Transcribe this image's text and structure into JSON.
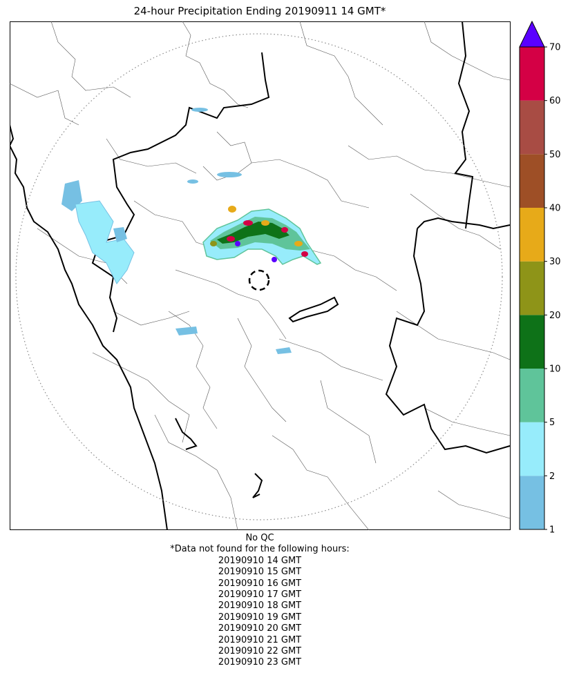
{
  "title": "24-hour Precipitation Ending 20190911 14 GMT*",
  "map": {
    "description_items": [
      "radar-range-ring",
      "radar-site-marker",
      "state-boundaries",
      "district-boundaries",
      "coastline",
      "precipitation-cells"
    ]
  },
  "colorbar": {
    "levels": [
      1,
      2,
      5,
      10,
      20,
      30,
      40,
      50,
      60,
      70
    ],
    "tick_labels": [
      "1",
      "2",
      "5",
      "10",
      "20",
      "30",
      "40",
      "50",
      "60",
      "70"
    ],
    "colors": [
      "#76c0e3",
      "#97ecfb",
      "#5fc49a",
      "#0e7218",
      "#8e9418",
      "#e7aa19",
      "#9e4f26",
      "#a84c44",
      "#d40045"
    ],
    "over_color": "#5a00ff"
  },
  "notes": {
    "qc": "No QC",
    "missing_header": "*Data not found for the following hours:",
    "missing_hours": [
      "20190910 14 GMT",
      "20190910 15 GMT",
      "20190910 16 GMT",
      "20190910 17 GMT",
      "20190910 18 GMT",
      "20190910 19 GMT",
      "20190910 20 GMT",
      "20190910 21 GMT",
      "20190910 22 GMT",
      "20190910 23 GMT"
    ]
  }
}
